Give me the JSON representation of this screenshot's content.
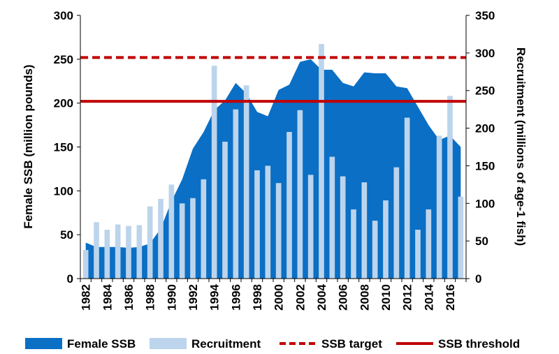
{
  "chart_data": {
    "type": "bar",
    "x": [
      1982,
      1983,
      1984,
      1985,
      1986,
      1987,
      1988,
      1989,
      1990,
      1991,
      1992,
      1993,
      1994,
      1995,
      1996,
      1997,
      1998,
      1999,
      2000,
      2001,
      2002,
      2003,
      2004,
      2005,
      2006,
      2007,
      2008,
      2009,
      2010,
      2011,
      2012,
      2013,
      2014,
      2015,
      2016,
      2017
    ],
    "x_tick_labels": [
      "1982",
      "1984",
      "1986",
      "1988",
      "1990",
      "1992",
      "1994",
      "1996",
      "1998",
      "2000",
      "2002",
      "2004",
      "2006",
      "2008",
      "2010",
      "2012",
      "2014",
      "2016"
    ],
    "ylabel": "Female SSB (million pounds)",
    "y2label": "Recruitment (millions of age-1 fish)",
    "ylim": [
      0,
      300
    ],
    "y2lim": [
      0,
      350
    ],
    "yticks": [
      "0",
      "50",
      "100",
      "150",
      "200",
      "250",
      "300"
    ],
    "y2ticks": [
      "0",
      "50",
      "100",
      "150",
      "200",
      "250",
      "300",
      "350"
    ],
    "series": [
      {
        "name": "Female SSB",
        "type": "area",
        "axis": "left",
        "color": "#0A6FC5",
        "values": [
          41,
          36,
          36,
          36,
          35,
          36,
          40,
          57,
          88,
          113,
          148,
          167,
          192,
          203,
          223,
          211,
          190,
          185,
          215,
          221,
          247,
          250,
          238,
          238,
          223,
          219,
          235,
          234,
          234,
          219,
          217,
          196,
          175,
          158,
          163,
          150
        ]
      },
      {
        "name": "Recruitment",
        "type": "bar",
        "axis": "right",
        "color": "#BCD4EC",
        "values": [
          38,
          75,
          65,
          72,
          70,
          71,
          96,
          106,
          125,
          100,
          107,
          132,
          283,
          182,
          225,
          257,
          144,
          150,
          127,
          195,
          224,
          138,
          312,
          162,
          136,
          92,
          128,
          77,
          104,
          148,
          214,
          65,
          92,
          190,
          243,
          109
        ]
      },
      {
        "name": "SSB target",
        "type": "hline",
        "axis": "left",
        "style": "dashed",
        "color": "#C00000",
        "value": 252
      },
      {
        "name": "SSB threshold",
        "type": "hline",
        "axis": "left",
        "style": "solid",
        "color": "#C00000",
        "value": 202
      }
    ],
    "legend": "bottom",
    "grid": false
  }
}
